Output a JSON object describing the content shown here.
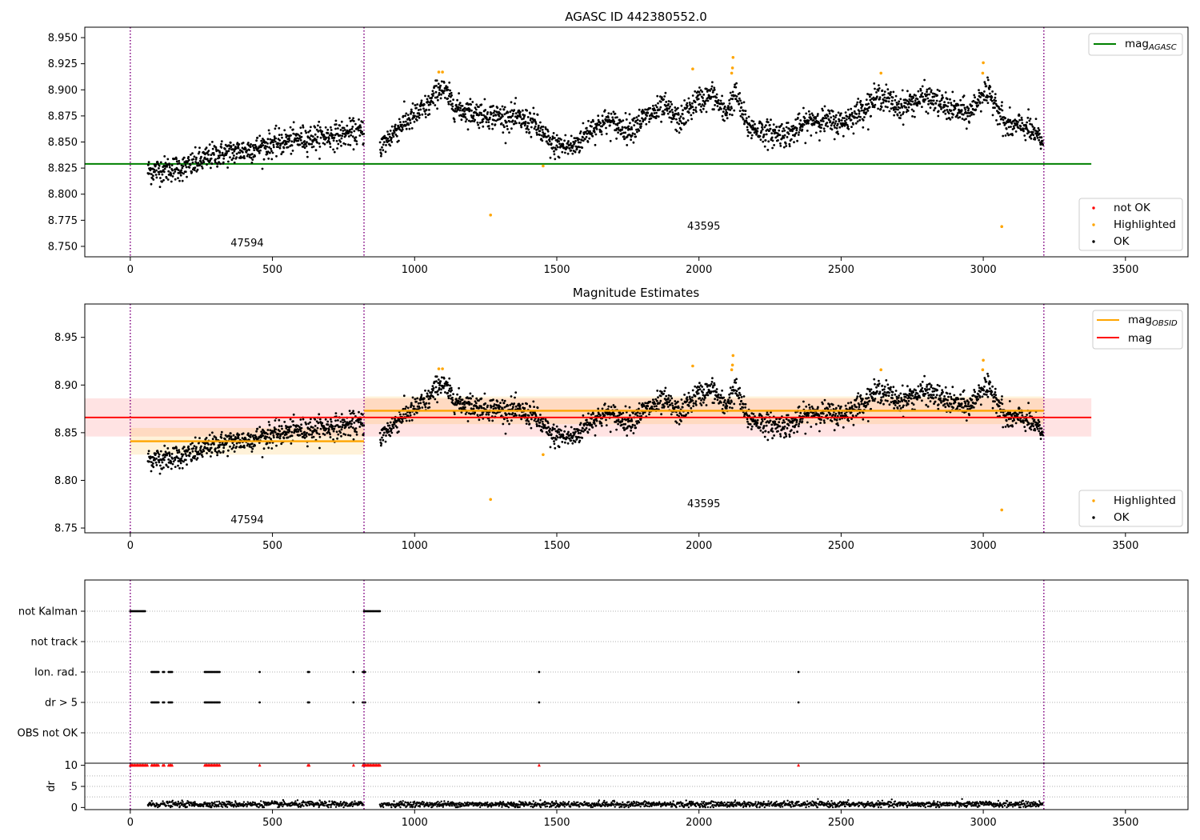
{
  "colors": {
    "ok": "#000000",
    "highlighted": "#ffa500",
    "not_ok": "#ff0000",
    "agasc_line": "#008000",
    "obsid_line": "#ffa500",
    "mag_line": "#ff0000",
    "obs_boundary": "#800080",
    "grid": "#b0b0b0"
  },
  "chart_data": [
    {
      "id": "agasc",
      "type": "scatter",
      "title": "AGASC ID 442380552.0",
      "xlim": [
        -160,
        3720
      ],
      "ylim": [
        8.74,
        8.96
      ],
      "yticks": [
        8.75,
        8.775,
        8.8,
        8.825,
        8.85,
        8.875,
        8.9,
        8.925,
        8.95
      ],
      "ytick_labels": [
        "8.750",
        "8.775",
        "8.800",
        "8.825",
        "8.850",
        "8.875",
        "8.900",
        "8.925",
        "8.950"
      ],
      "xticks": [
        0,
        500,
        1000,
        1500,
        2000,
        2500,
        3000,
        3500
      ],
      "xtick_labels": [
        "0",
        "500",
        "1000",
        "1500",
        "2000",
        "2500",
        "3000",
        "3500"
      ],
      "reference_line": {
        "name": "AGASC",
        "value": 8.829,
        "x_range": [
          -160,
          3380
        ]
      },
      "obs_boundaries": [
        0,
        822,
        3213
      ],
      "obs_labels": [
        {
          "text": "47594",
          "x": 411,
          "y": 8.75
        },
        {
          "text": "43595",
          "x": 2017,
          "y": 8.766
        }
      ],
      "legend_top": [
        "mag_AGASC"
      ],
      "legend_bottom": [
        "not OK",
        "Highlighted",
        "OK"
      ],
      "trend": [
        [
          60,
          8.822
        ],
        [
          200,
          8.826
        ],
        [
          300,
          8.838
        ],
        [
          400,
          8.842
        ],
        [
          500,
          8.848
        ],
        [
          600,
          8.853
        ],
        [
          700,
          8.856
        ],
        [
          820,
          8.86
        ],
        [
          880,
          8.845
        ],
        [
          950,
          8.866
        ],
        [
          1000,
          8.875
        ],
        [
          1050,
          8.885
        ],
        [
          1090,
          8.903
        ],
        [
          1150,
          8.882
        ],
        [
          1250,
          8.876
        ],
        [
          1350,
          8.873
        ],
        [
          1420,
          8.868
        ],
        [
          1480,
          8.847
        ],
        [
          1560,
          8.845
        ],
        [
          1620,
          8.863
        ],
        [
          1680,
          8.87
        ],
        [
          1750,
          8.862
        ],
        [
          1820,
          8.875
        ],
        [
          1880,
          8.883
        ],
        [
          1930,
          8.87
        ],
        [
          1990,
          8.889
        ],
        [
          2050,
          8.895
        ],
        [
          2090,
          8.877
        ],
        [
          2130,
          8.896
        ],
        [
          2170,
          8.865
        ],
        [
          2250,
          8.858
        ],
        [
          2320,
          8.858
        ],
        [
          2400,
          8.872
        ],
        [
          2500,
          8.868
        ],
        [
          2580,
          8.882
        ],
        [
          2640,
          8.895
        ],
        [
          2700,
          8.883
        ],
        [
          2800,
          8.893
        ],
        [
          2880,
          8.882
        ],
        [
          2950,
          8.877
        ],
        [
          3000,
          8.898
        ],
        [
          3040,
          8.89
        ],
        [
          3080,
          8.865
        ],
        [
          3150,
          8.865
        ],
        [
          3210,
          8.85
        ]
      ],
      "highlighted": [
        [
          1085,
          8.917
        ],
        [
          1098,
          8.917
        ],
        [
          1267,
          8.78
        ],
        [
          1452,
          8.827
        ],
        [
          1978,
          8.92
        ],
        [
          2120,
          8.931
        ],
        [
          2115,
          8.916
        ],
        [
          2118,
          8.921
        ],
        [
          2640,
          8.916
        ],
        [
          3000,
          8.926
        ],
        [
          2998,
          8.916
        ],
        [
          3065,
          8.769
        ]
      ]
    },
    {
      "id": "estimates",
      "type": "scatter",
      "title": "Magnitude Estimates",
      "xlim": [
        -160,
        3720
      ],
      "ylim": [
        8.745,
        8.985
      ],
      "yticks": [
        8.75,
        8.8,
        8.85,
        8.9,
        8.95
      ],
      "ytick_labels": [
        "8.75",
        "8.80",
        "8.85",
        "8.90",
        "8.95"
      ],
      "xticks": [
        0,
        500,
        1000,
        1500,
        2000,
        2500,
        3000,
        3500
      ],
      "xtick_labels": [
        "0",
        "500",
        "1000",
        "1500",
        "2000",
        "2500",
        "3000",
        "3500"
      ],
      "mag": {
        "value": 8.866,
        "band": [
          8.846,
          8.886
        ],
        "x_range": [
          -160,
          3380
        ]
      },
      "mag_obsid": [
        {
          "x_range": [
            0,
            822
          ],
          "value": 8.841,
          "band": [
            8.827,
            8.855
          ]
        },
        {
          "x_range": [
            822,
            3213
          ],
          "value": 8.873,
          "band": [
            8.859,
            8.888
          ]
        }
      ],
      "obs_boundaries": [
        0,
        822,
        3213
      ],
      "obs_labels": [
        {
          "text": "47594",
          "x": 411,
          "y": 8.755
        },
        {
          "text": "43595",
          "x": 2017,
          "y": 8.772
        }
      ],
      "legend_top": [
        "mag_OBSID",
        "mag"
      ],
      "legend_bottom": [
        "Highlighted",
        "OK"
      ]
    },
    {
      "id": "flags",
      "type": "scatter",
      "xlim": [
        -160,
        3720
      ],
      "categories": [
        "not Kalman",
        "not track",
        "Ion. rad.",
        "dr > 5",
        "OBS not OK"
      ],
      "obs_boundaries": [
        0,
        822,
        3213
      ],
      "flag_runs": {
        "not Kalman": [
          [
            0,
            55
          ],
          [
            822,
            880
          ]
        ],
        "not track": [],
        "Ion. rad.": [
          [
            75,
            100
          ],
          [
            115,
            122
          ],
          [
            135,
            150
          ],
          [
            262,
            315
          ],
          [
            455,
            458
          ],
          [
            625,
            632
          ],
          [
            785,
            788
          ],
          [
            818,
            828
          ],
          [
            1438,
            1441
          ],
          [
            2350,
            2353
          ]
        ],
        "dr > 5": [
          [
            75,
            100
          ],
          [
            115,
            122
          ],
          [
            135,
            150
          ],
          [
            262,
            315
          ],
          [
            455,
            458
          ],
          [
            625,
            632
          ],
          [
            785,
            788
          ],
          [
            818,
            828
          ],
          [
            1438,
            1441
          ],
          [
            2350,
            2353
          ]
        ],
        "OBS not OK": []
      }
    },
    {
      "id": "dr",
      "type": "scatter",
      "ylabel": "dr",
      "xlim": [
        -160,
        3720
      ],
      "ylim": [
        -0.5,
        10.5
      ],
      "yticks": [
        0,
        5,
        10
      ],
      "ytick_labels": [
        "0",
        "5",
        "10"
      ],
      "xticks": [
        0,
        500,
        1000,
        1500,
        2000,
        2500,
        3000,
        3500
      ],
      "xtick_labels": [
        "0",
        "500",
        "1000",
        "1500",
        "2000",
        "2500",
        "3000",
        "3500"
      ],
      "obs_boundaries": [
        0,
        822,
        3213
      ],
      "clipped_runs": [
        [
          0,
          60
        ],
        [
          75,
          100
        ],
        [
          115,
          122
        ],
        [
          135,
          150
        ],
        [
          262,
          315
        ],
        [
          455,
          458
        ],
        [
          625,
          632
        ],
        [
          785,
          788
        ],
        [
          818,
          880
        ],
        [
          1438,
          1441
        ],
        [
          2350,
          2353
        ]
      ],
      "clipped_value": 10
    }
  ],
  "legend_labels": {
    "mag_agasc_main": "mag",
    "mag_agasc_sub": "AGASC",
    "mag_obsid_main": "mag",
    "mag_obsid_sub": "OBSID",
    "mag": "mag",
    "not_ok": "not OK",
    "highlighted": "Highlighted",
    "ok": "OK"
  }
}
